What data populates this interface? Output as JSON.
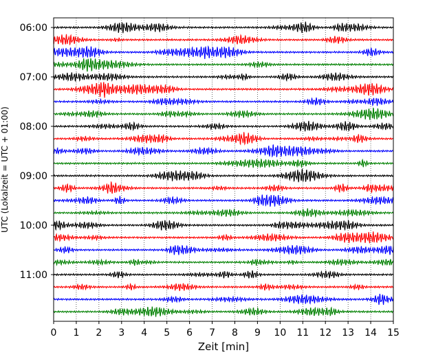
{
  "chart_data": {
    "type": "line",
    "title": "",
    "xlabel": "Zeit  [min]",
    "ylabel": "UTC (Lokalzeit = UTC + 01:00)",
    "xlim": [
      0,
      15
    ],
    "x_ticks": [
      0,
      1,
      2,
      3,
      4,
      5,
      6,
      7,
      8,
      9,
      10,
      11,
      12,
      13,
      14,
      15
    ],
    "y_tick_labels": [
      "06:00",
      "07:00",
      "08:00",
      "09:00",
      "10:00",
      "11:00"
    ],
    "y_tick_rows": [
      0,
      4,
      8,
      12,
      16,
      20
    ],
    "grid": true,
    "trace_count": 24,
    "trace_interval_minutes": 15,
    "first_trace_start": "06:00",
    "color_cycle": [
      "#000000",
      "#ff0000",
      "#0000ff",
      "#008000"
    ]
  }
}
